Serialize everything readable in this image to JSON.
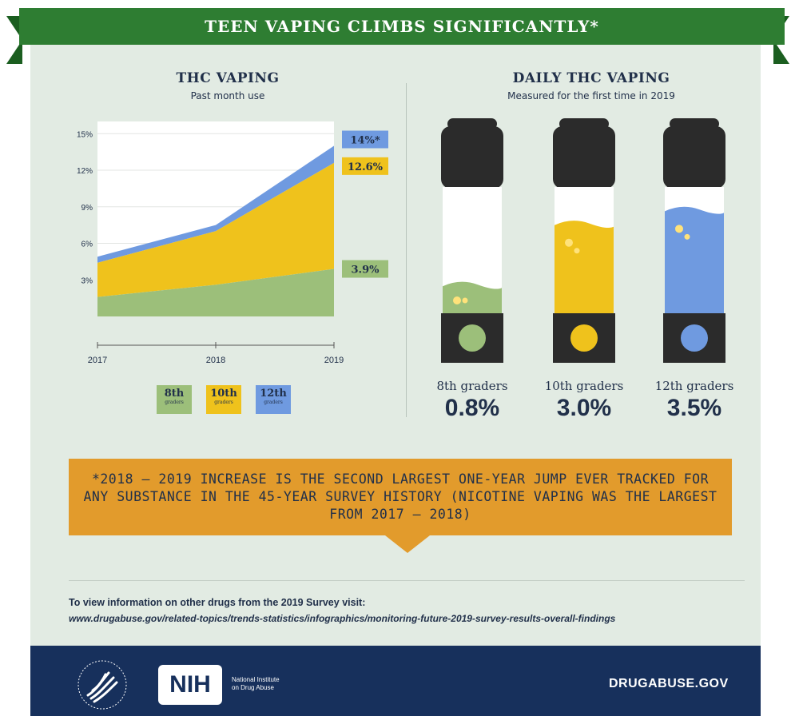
{
  "banner": {
    "title": "TEEN VAPING CLIMBS SIGNIFICANTLY*"
  },
  "left_panel": {
    "title": "THC VAPING",
    "subtitle": "Past month use"
  },
  "right_panel": {
    "title": "DAILY THC VAPING",
    "subtitle": "Measured for the first time in 2019"
  },
  "chart_data": [
    {
      "type": "area",
      "title": "THC VAPING",
      "subtitle": "Past month use",
      "x": [
        "2017",
        "2018",
        "2019"
      ],
      "y_ticks": [
        "3%",
        "6%",
        "9%",
        "12%",
        "15%"
      ],
      "ylim": [
        0,
        16
      ],
      "stacked": true,
      "series": [
        {
          "name": "8th",
          "sub": "graders",
          "values": [
            1.6,
            2.6,
            3.9
          ],
          "color": "#9cbf7a",
          "end_label": "3.9%"
        },
        {
          "name": "10th",
          "sub": "graders",
          "values": [
            4.4,
            7.0,
            12.6
          ],
          "color": "#efc21c",
          "end_label": "12.6%"
        },
        {
          "name": "12th",
          "sub": "graders",
          "values": [
            4.9,
            7.5,
            14.0
          ],
          "color": "#6f9ae0",
          "end_label": "14%*"
        }
      ]
    },
    {
      "type": "bar",
      "title": "DAILY THC VAPING",
      "subtitle": "Measured for the first time in 2019",
      "categories": [
        "8th graders",
        "10th graders",
        "12th graders"
      ],
      "values": [
        0.8,
        3.0,
        3.5
      ],
      "value_labels": [
        "0.8%",
        "3.0%",
        "3.5%"
      ],
      "colors": [
        "#9cbf7a",
        "#efc21c",
        "#6f9ae0"
      ]
    }
  ],
  "callout": {
    "text": "*2018 – 2019 INCREASE IS THE SECOND LARGEST ONE-YEAR JUMP EVER TRACKED FOR ANY SUBSTANCE IN THE 45-YEAR SURVEY HISTORY (NICOTINE VAPING WAS THE LARGEST FROM 2017 – 2018)"
  },
  "footer_note": {
    "heading": "To view information on other drugs from the 2019 Survey visit:",
    "url": "www.drugabuse.gov/related-topics/trends-statistics/infographics/monitoring-future-2019-survey-results-overall-findings"
  },
  "footer": {
    "nih": "NIH",
    "nih_line1": "National Institute",
    "nih_line2": "on Drug Abuse",
    "site": "DRUGABUSE.GOV"
  },
  "icons": [
    "hhs-eagle-icon",
    "nih-logo-icon"
  ]
}
